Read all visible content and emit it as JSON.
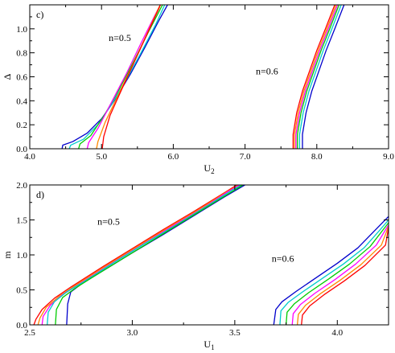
{
  "chart_data": [
    {
      "type": "line",
      "panel_label": "c)",
      "xlabel": "U",
      "xlabel_sub": "2",
      "ylabel": "Δ",
      "xlim": [
        4.0,
        9.0
      ],
      "ylim": [
        0.0,
        1.2
      ],
      "xticks": [
        4.0,
        5.0,
        6.0,
        7.0,
        8.0,
        9.0
      ],
      "xtick_labels": [
        "4.0",
        "5.0",
        "6.0",
        "7.0",
        "8.0",
        "9.0"
      ],
      "xminor": [
        4.5,
        5.5,
        6.5,
        7.5,
        8.5
      ],
      "yticks": [
        0.0,
        0.2,
        0.4,
        0.6,
        0.8,
        1.0
      ],
      "ytick_labels": [
        "0.0",
        "0.2",
        "0.4",
        "0.6",
        "0.8",
        "1.0"
      ],
      "yminor": [
        0.1,
        0.3,
        0.5,
        0.7,
        0.9,
        1.1
      ],
      "annotations": [
        {
          "text": "n=0.5",
          "x": 5.1,
          "y": 0.9
        },
        {
          "text": "n=0.6",
          "x": 7.15,
          "y": 0.62
        }
      ],
      "series": [
        {
          "color": "#0000cc",
          "points": [
            [
              4.45,
              0.0
            ],
            [
              4.46,
              0.03
            ],
            [
              4.6,
              0.06
            ],
            [
              4.8,
              0.13
            ],
            [
              5.0,
              0.25
            ],
            [
              5.2,
              0.42
            ],
            [
              5.4,
              0.62
            ],
            [
              5.6,
              0.84
            ],
            [
              5.8,
              1.07
            ],
            [
              5.92,
              1.2
            ]
          ]
        },
        {
          "color": "#00cccc",
          "points": [
            [
              4.55,
              0.0
            ],
            [
              4.57,
              0.03
            ],
            [
              4.75,
              0.08
            ],
            [
              4.95,
              0.2
            ],
            [
              5.15,
              0.38
            ],
            [
              5.35,
              0.58
            ],
            [
              5.55,
              0.8
            ],
            [
              5.75,
              1.03
            ],
            [
              5.88,
              1.2
            ]
          ]
        },
        {
          "color": "#00cc00",
          "points": [
            [
              4.68,
              0.0
            ],
            [
              4.7,
              0.04
            ],
            [
              4.85,
              0.11
            ],
            [
              5.05,
              0.29
            ],
            [
              5.25,
              0.5
            ],
            [
              5.45,
              0.73
            ],
            [
              5.65,
              0.97
            ],
            [
              5.85,
              1.2
            ]
          ]
        },
        {
          "color": "#ff00ff",
          "points": [
            [
              4.8,
              0.0
            ],
            [
              4.82,
              0.05
            ],
            [
              4.95,
              0.17
            ],
            [
              5.15,
              0.4
            ],
            [
              5.35,
              0.63
            ],
            [
              5.55,
              0.88
            ],
            [
              5.75,
              1.12
            ],
            [
              5.82,
              1.2
            ]
          ]
        },
        {
          "color": "#ff8800",
          "points": [
            [
              4.93,
              0.0
            ],
            [
              4.95,
              0.06
            ],
            [
              5.05,
              0.22
            ],
            [
              5.25,
              0.47
            ],
            [
              5.45,
              0.72
            ],
            [
              5.65,
              0.98
            ],
            [
              5.8,
              1.18
            ],
            [
              5.82,
              1.2
            ]
          ]
        },
        {
          "color": "#ff0000",
          "points": [
            [
              5.01,
              0.0
            ],
            [
              5.03,
              0.1
            ],
            [
              5.12,
              0.28
            ],
            [
              5.3,
              0.52
            ],
            [
              5.5,
              0.78
            ],
            [
              5.7,
              1.04
            ],
            [
              5.8,
              1.17
            ],
            [
              5.82,
              1.2
            ]
          ]
        },
        {
          "color": "#ff0000",
          "points": [
            [
              7.67,
              0.0
            ],
            [
              7.67,
              0.12
            ],
            [
              7.72,
              0.3
            ],
            [
              7.8,
              0.48
            ],
            [
              7.9,
              0.65
            ],
            [
              8.0,
              0.82
            ],
            [
              8.12,
              1.0
            ],
            [
              8.25,
              1.2
            ]
          ]
        },
        {
          "color": "#ff8800",
          "points": [
            [
              7.69,
              0.0
            ],
            [
              7.69,
              0.12
            ],
            [
              7.74,
              0.3
            ],
            [
              7.82,
              0.48
            ],
            [
              7.92,
              0.65
            ],
            [
              8.02,
              0.82
            ],
            [
              8.14,
              1.0
            ],
            [
              8.27,
              1.2
            ]
          ]
        },
        {
          "color": "#ff00ff",
          "points": [
            [
              7.71,
              0.0
            ],
            [
              7.71,
              0.12
            ],
            [
              7.76,
              0.3
            ],
            [
              7.84,
              0.48
            ],
            [
              7.94,
              0.65
            ],
            [
              8.04,
              0.82
            ],
            [
              8.16,
              1.0
            ],
            [
              8.29,
              1.2
            ]
          ]
        },
        {
          "color": "#00cc00",
          "points": [
            [
              7.73,
              0.0
            ],
            [
              7.73,
              0.12
            ],
            [
              7.78,
              0.3
            ],
            [
              7.86,
              0.48
            ],
            [
              7.96,
              0.65
            ],
            [
              8.06,
              0.82
            ],
            [
              8.18,
              1.0
            ],
            [
              8.31,
              1.2
            ]
          ]
        },
        {
          "color": "#00cccc",
          "points": [
            [
              7.76,
              0.0
            ],
            [
              7.76,
              0.12
            ],
            [
              7.81,
              0.3
            ],
            [
              7.89,
              0.48
            ],
            [
              7.99,
              0.65
            ],
            [
              8.09,
              0.82
            ],
            [
              8.21,
              1.0
            ],
            [
              8.34,
              1.2
            ]
          ]
        },
        {
          "color": "#0000cc",
          "points": [
            [
              7.8,
              0.0
            ],
            [
              7.8,
              0.12
            ],
            [
              7.85,
              0.3
            ],
            [
              7.93,
              0.48
            ],
            [
              8.03,
              0.65
            ],
            [
              8.13,
              0.82
            ],
            [
              8.25,
              1.0
            ],
            [
              8.38,
              1.2
            ]
          ]
        }
      ]
    },
    {
      "type": "line",
      "panel_label": "d)",
      "xlabel": "U",
      "xlabel_sub": "1",
      "ylabel": "m",
      "xlim": [
        2.5,
        4.25
      ],
      "ylim": [
        0.0,
        2.0
      ],
      "xticks": [
        2.5,
        3.0,
        3.5,
        4.0
      ],
      "xtick_labels": [
        "2.5",
        "3.0",
        "3.5",
        "4.0"
      ],
      "xminor": [
        2.75,
        3.25,
        3.75
      ],
      "yticks": [
        0.0,
        0.5,
        1.0,
        1.5,
        2.0
      ],
      "ytick_labels": [
        "0.0",
        "0.5",
        "1.0",
        "1.5",
        "2.0"
      ],
      "yminor": [
        0.25,
        0.75,
        1.25,
        1.75
      ],
      "annotations": [
        {
          "text": "n=0.5",
          "x": 2.83,
          "y": 1.43
        },
        {
          "text": "n=0.6",
          "x": 3.68,
          "y": 0.9
        }
      ],
      "series": [
        {
          "color": "#0000cc",
          "points": [
            [
              2.68,
              0.0
            ],
            [
              2.685,
              0.3
            ],
            [
              2.7,
              0.47
            ],
            [
              2.75,
              0.58
            ],
            [
              2.85,
              0.76
            ],
            [
              3.0,
              1.03
            ],
            [
              3.15,
              1.29
            ],
            [
              3.3,
              1.56
            ],
            [
              3.45,
              1.83
            ],
            [
              3.55,
              2.0
            ]
          ]
        },
        {
          "color": "#ff0000",
          "points": [
            [
              2.52,
              0.0
            ],
            [
              2.53,
              0.08
            ],
            [
              2.56,
              0.22
            ],
            [
              2.62,
              0.38
            ],
            [
              2.7,
              0.54
            ],
            [
              2.85,
              0.82
            ],
            [
              3.0,
              1.09
            ],
            [
              3.15,
              1.36
            ],
            [
              3.3,
              1.62
            ],
            [
              3.45,
              1.89
            ],
            [
              3.51,
              2.0
            ]
          ]
        },
        {
          "color": "#ff8800",
          "points": [
            [
              2.54,
              0.0
            ],
            [
              2.55,
              0.1
            ],
            [
              2.58,
              0.25
            ],
            [
              2.64,
              0.4
            ],
            [
              2.72,
              0.56
            ],
            [
              2.87,
              0.84
            ],
            [
              3.02,
              1.11
            ],
            [
              3.17,
              1.38
            ],
            [
              3.32,
              1.64
            ],
            [
              3.46,
              1.9
            ],
            [
              3.52,
              2.0
            ]
          ]
        },
        {
          "color": "#ff00ff",
          "points": [
            [
              2.56,
              0.0
            ],
            [
              2.565,
              0.12
            ],
            [
              2.6,
              0.28
            ],
            [
              2.66,
              0.43
            ],
            [
              2.74,
              0.58
            ],
            [
              2.89,
              0.86
            ],
            [
              3.04,
              1.13
            ],
            [
              3.19,
              1.4
            ],
            [
              3.34,
              1.66
            ],
            [
              3.47,
              1.91
            ],
            [
              3.525,
              2.0
            ]
          ]
        },
        {
          "color": "#00cccc",
          "points": [
            [
              2.585,
              0.0
            ],
            [
              2.59,
              0.18
            ],
            [
              2.62,
              0.33
            ],
            [
              2.68,
              0.47
            ],
            [
              2.76,
              0.61
            ],
            [
              2.91,
              0.89
            ],
            [
              3.06,
              1.16
            ],
            [
              3.21,
              1.42
            ],
            [
              3.36,
              1.69
            ],
            [
              3.49,
              1.93
            ],
            [
              3.535,
              2.0
            ]
          ]
        },
        {
          "color": "#00cc00",
          "points": [
            [
              2.625,
              0.0
            ],
            [
              2.63,
              0.22
            ],
            [
              2.66,
              0.39
            ],
            [
              2.72,
              0.52
            ],
            [
              2.8,
              0.67
            ],
            [
              2.95,
              0.94
            ],
            [
              3.1,
              1.21
            ],
            [
              3.25,
              1.48
            ],
            [
              3.4,
              1.75
            ],
            [
              3.54,
              2.0
            ]
          ]
        },
        {
          "color": "#0000cc",
          "points": [
            [
              3.69,
              0.0
            ],
            [
              3.7,
              0.22
            ],
            [
              3.73,
              0.33
            ],
            [
              3.8,
              0.48
            ],
            [
              3.9,
              0.68
            ],
            [
              4.0,
              0.88
            ],
            [
              4.1,
              1.1
            ],
            [
              4.2,
              1.4
            ],
            [
              4.25,
              1.55
            ]
          ]
        },
        {
          "color": "#00cccc",
          "points": [
            [
              3.72,
              0.0
            ],
            [
              3.725,
              0.2
            ],
            [
              3.76,
              0.32
            ],
            [
              3.83,
              0.47
            ],
            [
              3.93,
              0.67
            ],
            [
              4.03,
              0.87
            ],
            [
              4.13,
              1.1
            ],
            [
              4.2,
              1.33
            ],
            [
              4.25,
              1.5
            ]
          ]
        },
        {
          "color": "#00cc00",
          "points": [
            [
              3.75,
              0.0
            ],
            [
              3.755,
              0.18
            ],
            [
              3.79,
              0.3
            ],
            [
              3.86,
              0.46
            ],
            [
              3.96,
              0.66
            ],
            [
              4.06,
              0.87
            ],
            [
              4.16,
              1.12
            ],
            [
              4.25,
              1.46
            ]
          ]
        },
        {
          "color": "#ff00ff",
          "points": [
            [
              3.78,
              0.0
            ],
            [
              3.785,
              0.16
            ],
            [
              3.82,
              0.29
            ],
            [
              3.89,
              0.45
            ],
            [
              3.99,
              0.65
            ],
            [
              4.09,
              0.87
            ],
            [
              4.19,
              1.14
            ],
            [
              4.25,
              1.43
            ]
          ]
        },
        {
          "color": "#ff8800",
          "points": [
            [
              3.805,
              0.0
            ],
            [
              3.81,
              0.15
            ],
            [
              3.845,
              0.28
            ],
            [
              3.915,
              0.44
            ],
            [
              4.015,
              0.64
            ],
            [
              4.115,
              0.86
            ],
            [
              4.215,
              1.14
            ],
            [
              4.25,
              1.41
            ]
          ]
        },
        {
          "color": "#ff0000",
          "points": [
            [
              3.825,
              0.0
            ],
            [
              3.83,
              0.14
            ],
            [
              3.865,
              0.27
            ],
            [
              3.935,
              0.43
            ],
            [
              4.035,
              0.63
            ],
            [
              4.135,
              0.85
            ],
            [
              4.235,
              1.14
            ],
            [
              4.25,
              1.39
            ]
          ]
        }
      ]
    }
  ]
}
